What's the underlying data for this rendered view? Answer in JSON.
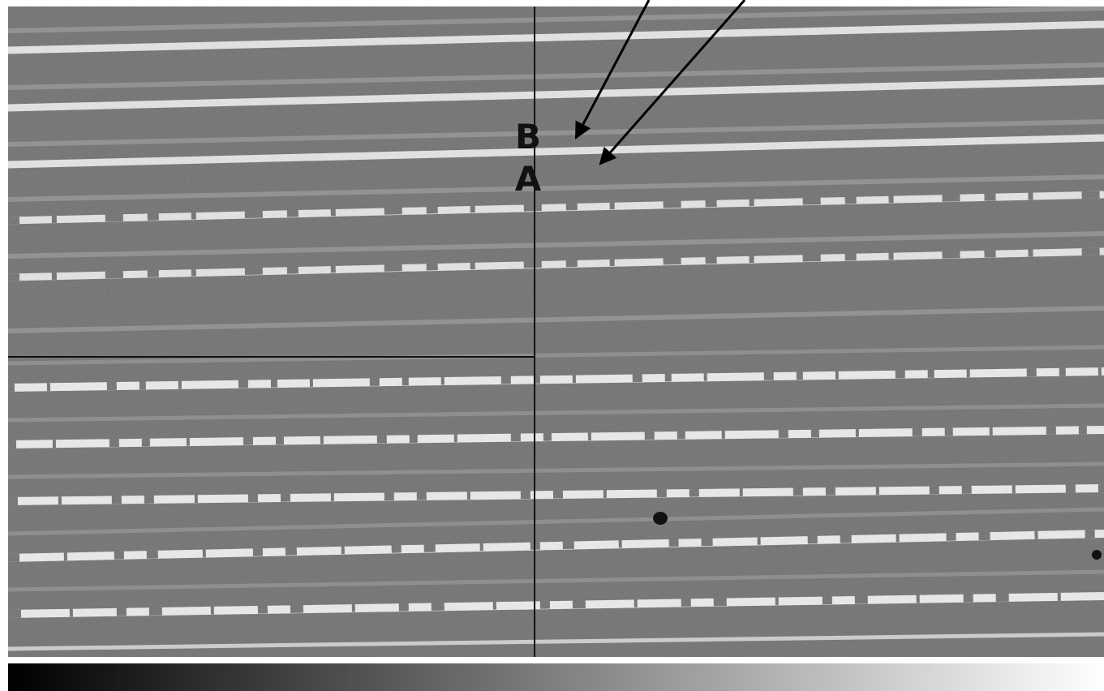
{
  "annotations": [
    {
      "label": "B"
    },
    {
      "label": "A"
    }
  ]
}
